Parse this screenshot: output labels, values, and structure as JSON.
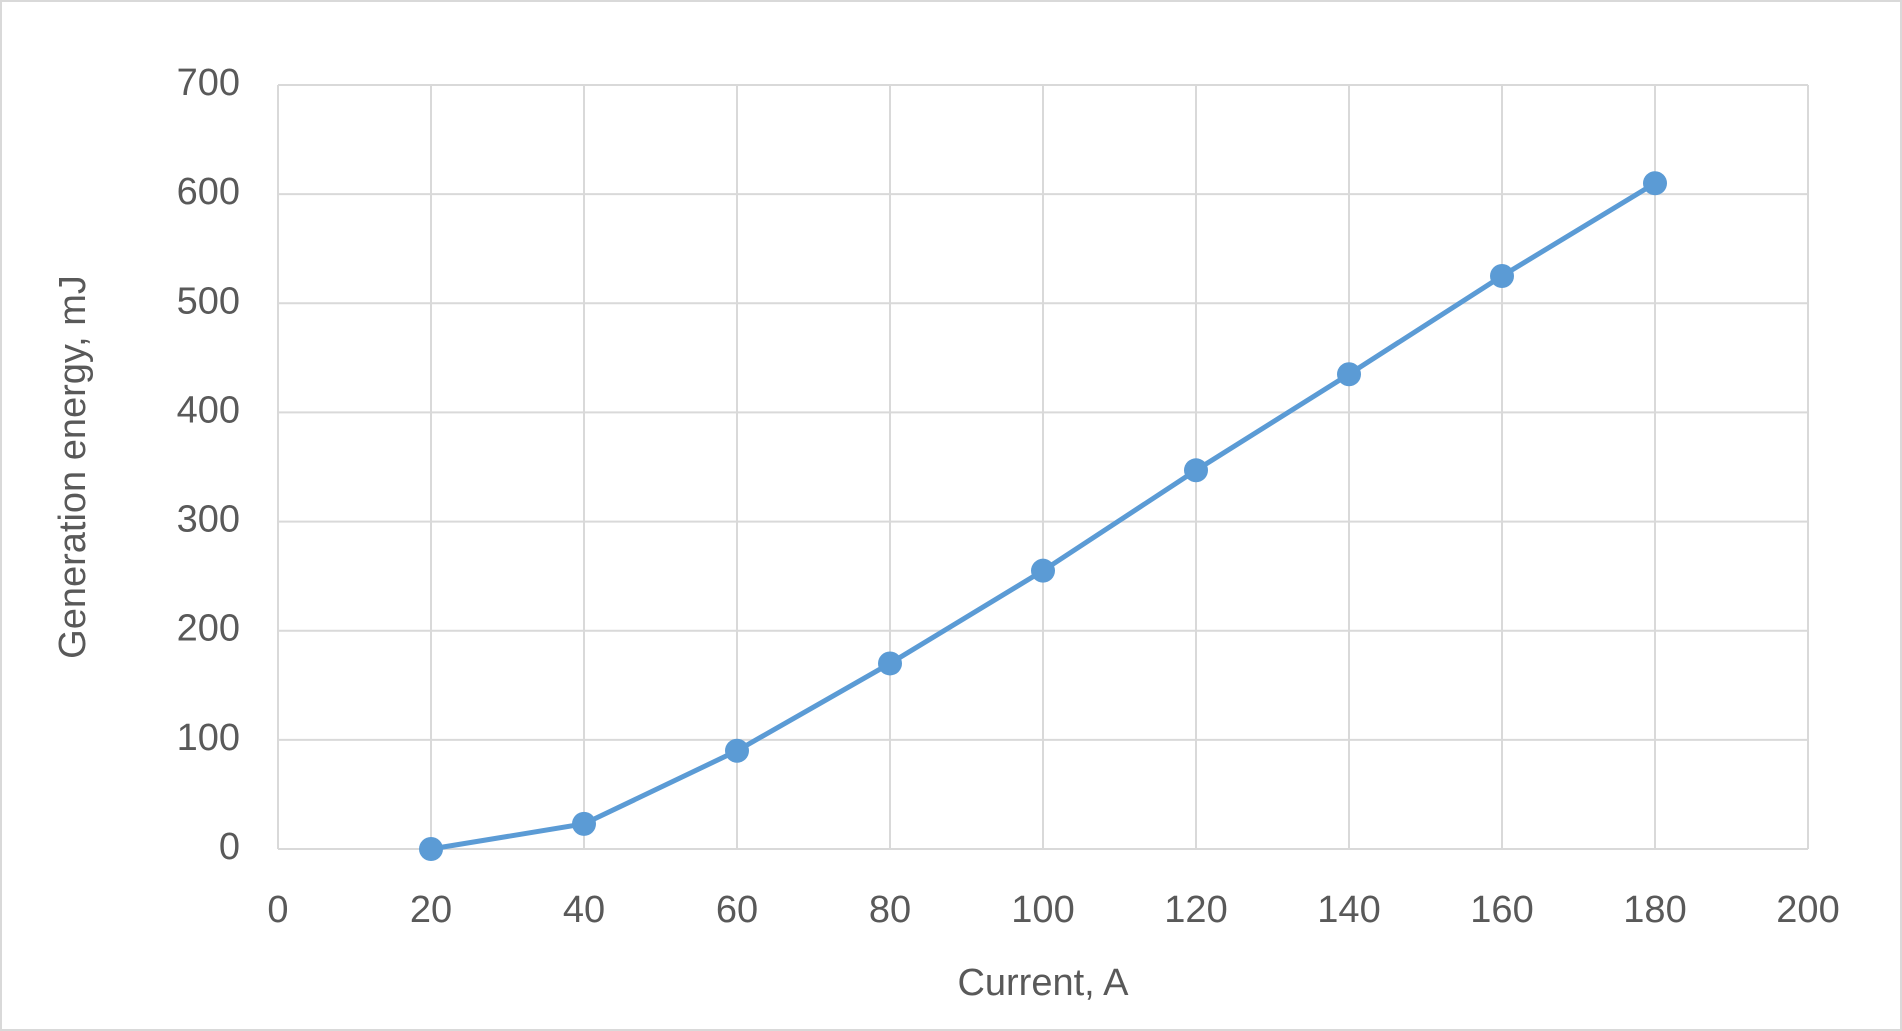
{
  "chart_data": {
    "type": "line",
    "x_label": "Current, A",
    "y_label": "Generation energy, mJ",
    "x": [
      20,
      40,
      60,
      80,
      100,
      120,
      140,
      160,
      180
    ],
    "series": [
      {
        "name": "Generation energy",
        "color": "#5b9bd5",
        "values": [
          0,
          23,
          90,
          170,
          255,
          347,
          435,
          525,
          610
        ]
      }
    ],
    "xlim": [
      0,
      200
    ],
    "xticks": [
      0,
      20,
      40,
      60,
      80,
      100,
      120,
      140,
      160,
      180,
      200
    ],
    "ylim": [
      0,
      700
    ],
    "yticks": [
      0,
      100,
      200,
      300,
      400,
      500,
      600,
      700
    ],
    "grid": true
  }
}
